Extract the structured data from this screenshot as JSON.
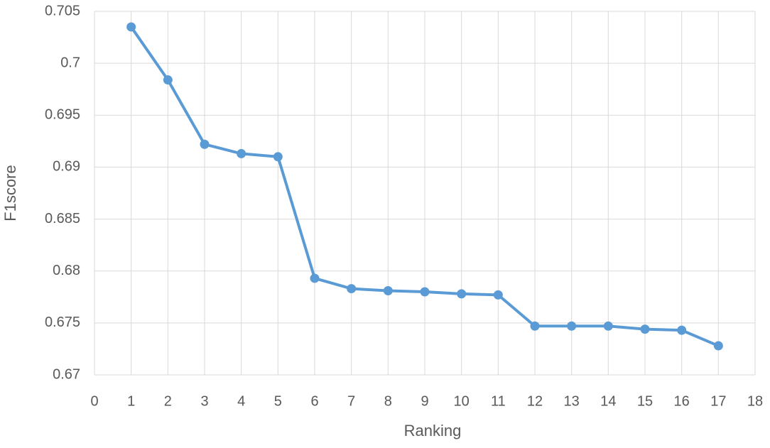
{
  "chart_data": {
    "type": "line",
    "x_label": "Ranking",
    "y_label": "F1score",
    "x": [
      1,
      2,
      3,
      4,
      5,
      6,
      7,
      8,
      9,
      10,
      11,
      12,
      13,
      14,
      15,
      16,
      17
    ],
    "values": [
      0.7035,
      0.6984,
      0.6922,
      0.6913,
      0.691,
      0.6793,
      0.6783,
      0.6781,
      0.678,
      0.6778,
      0.6777,
      0.6747,
      0.6747,
      0.6747,
      0.6744,
      0.6743,
      0.6728
    ],
    "color": "#5b9bd5",
    "xlim": [
      0,
      18
    ],
    "xticks": [
      0,
      1,
      2,
      3,
      4,
      5,
      6,
      7,
      8,
      9,
      10,
      11,
      12,
      13,
      14,
      15,
      16,
      17,
      18
    ],
    "ylim": [
      0.67,
      0.705
    ],
    "yticks": [
      0.67,
      0.675,
      0.68,
      0.685,
      0.69,
      0.695,
      0.7,
      0.705
    ],
    "grid": true
  }
}
